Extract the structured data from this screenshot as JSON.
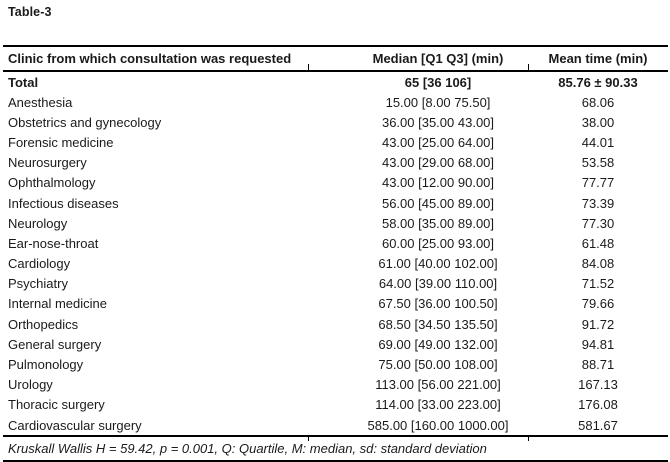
{
  "title": "Table-3",
  "table": {
    "columns": [
      "Clinic from which consultation was requested",
      "Median [Q1 Q3] (min)",
      "Mean time (min)"
    ],
    "rows": [
      {
        "clinic": "Total",
        "median": "65 [36 106]",
        "mean": "85.76 ± 90.33",
        "bold": true
      },
      {
        "clinic": "Anesthesia",
        "median": "15.00 [8.00 75.50]",
        "mean": "68.06",
        "bold": false
      },
      {
        "clinic": "Obstetrics and gynecology",
        "median": "36.00 [35.00 43.00]",
        "mean": "38.00",
        "bold": false
      },
      {
        "clinic": "Forensic medicine",
        "median": "43.00 [25.00 64.00]",
        "mean": "44.01",
        "bold": false
      },
      {
        "clinic": "Neurosurgery",
        "median": "43.00 [29.00 68.00]",
        "mean": "53.58",
        "bold": false
      },
      {
        "clinic": "Ophthalmology",
        "median": "43.00 [12.00 90.00]",
        "mean": "77.77",
        "bold": false
      },
      {
        "clinic": "Infectious diseases",
        "median": "56.00 [45.00 89.00]",
        "mean": "73.39",
        "bold": false
      },
      {
        "clinic": "Neurology",
        "median": "58.00 [35.00 89.00]",
        "mean": "77.30",
        "bold": false
      },
      {
        "clinic": "Ear-nose-throat",
        "median": "60.00 [25.00 93.00]",
        "mean": "61.48",
        "bold": false
      },
      {
        "clinic": "Cardiology",
        "median": "61.00 [40.00 102.00]",
        "mean": "84.08",
        "bold": false
      },
      {
        "clinic": "Psychiatry",
        "median": "64.00 [39.00 110.00]",
        "mean": "71.52",
        "bold": false
      },
      {
        "clinic": "Internal medicine",
        "median": "67.50 [36.00 100.50]",
        "mean": "79.66",
        "bold": false
      },
      {
        "clinic": "Orthopedics",
        "median": "68.50 [34.50 135.50]",
        "mean": "91.72",
        "bold": false
      },
      {
        "clinic": "General surgery",
        "median": "69.00 [49.00 132.00]",
        "mean": "94.81",
        "bold": false
      },
      {
        "clinic": "Pulmonology",
        "median": "75.00 [50.00 108.00]",
        "mean": "88.71",
        "bold": false
      },
      {
        "clinic": "Urology",
        "median": "113.00 [56.00 221.00]",
        "mean": "167.13",
        "bold": false
      },
      {
        "clinic": "Thoracic surgery",
        "median": "114.00 [33.00 223.00]",
        "mean": "176.08",
        "bold": false
      },
      {
        "clinic": "Cardiovascular surgery",
        "median": "585.00 [160.00 1000.00]",
        "mean": "581.67",
        "bold": false
      }
    ],
    "footnote": "Kruskall Wallis H = 59.42, p = 0.001, Q: Quartile, M: median, sd: standard deviation"
  },
  "colors": {
    "text": "#1a1a1a",
    "rule": "#000000",
    "background": "#ffffff"
  }
}
